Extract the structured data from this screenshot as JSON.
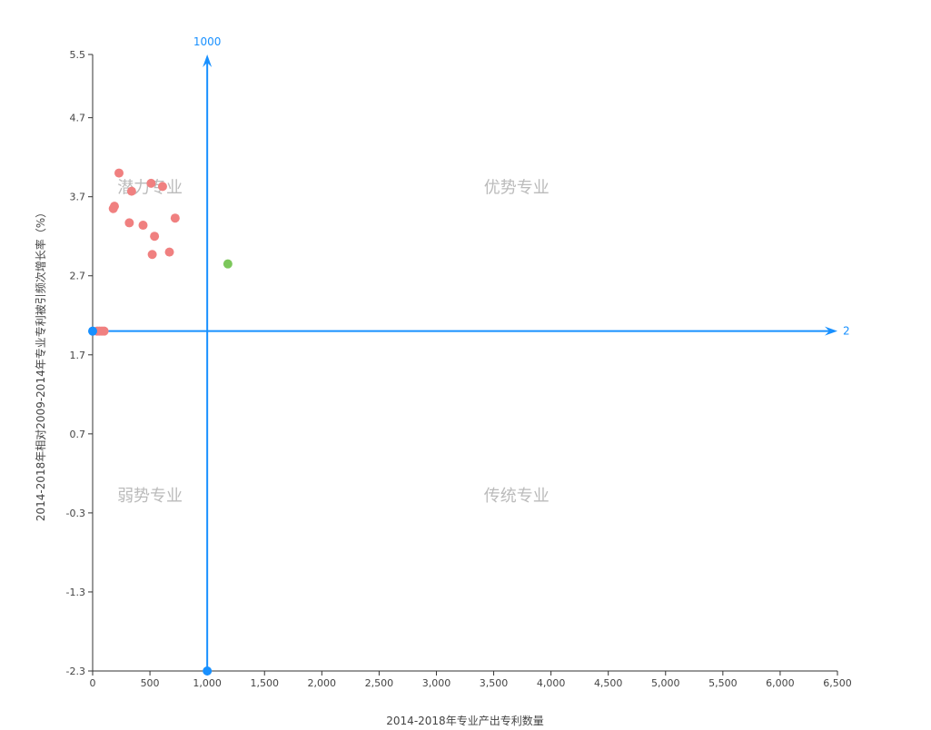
{
  "chart_data": {
    "type": "scatter",
    "title": "",
    "xlabel": "2014-2018年专业产出专利数量",
    "ylabel": "2014-2018年相对2009-2014年专业专利被引频次增长率（%）",
    "xlim": [
      0,
      6500
    ],
    "ylim": [
      -2.3,
      5.5
    ],
    "x_ticks": [
      0,
      500,
      1000,
      1500,
      2000,
      2500,
      3000,
      3500,
      4000,
      4500,
      5000,
      5500,
      6000,
      6500
    ],
    "x_tick_labels": [
      "0",
      "500",
      "1,000",
      "1,500",
      "2,000",
      "2,500",
      "3,000",
      "3,500",
      "4,000",
      "4,500",
      "5,000",
      "5,500",
      "6,000",
      "6,500"
    ],
    "y_ticks": [
      5.5,
      4.7,
      3.7,
      2.7,
      1.7,
      0.7,
      -0.3,
      -1.3,
      -2.3
    ],
    "y_tick_labels": [
      "5.5",
      "4.7",
      "3.7",
      "2.7",
      "1.7",
      "0.7",
      "-0.3",
      "-1.3",
      "-2.3"
    ],
    "reference_lines": {
      "vertical": {
        "x": 1000,
        "label": "1000",
        "color": "#1890ff"
      },
      "horizontal": {
        "y": 2,
        "label": "2",
        "color": "#1890ff"
      }
    },
    "quadrant_labels": {
      "top_left": "潜力专业",
      "top_right": "优势专业",
      "bottom_left": "弱势专业",
      "bottom_right": "传统专业"
    },
    "quadrant_label_positions": {
      "top_left": [
        500,
        3.75
      ],
      "top_right": [
        3700,
        3.75
      ],
      "bottom_left": [
        500,
        -0.15
      ],
      "bottom_right": [
        3700,
        -0.15
      ]
    },
    "series": [
      {
        "color": "#f08080",
        "points": [
          {
            "x": 230,
            "y": 4.0
          },
          {
            "x": 510,
            "y": 3.87
          },
          {
            "x": 610,
            "y": 3.83
          },
          {
            "x": 340,
            "y": 3.77
          },
          {
            "x": 190,
            "y": 3.58
          },
          {
            "x": 180,
            "y": 3.55
          },
          {
            "x": 320,
            "y": 3.37
          },
          {
            "x": 440,
            "y": 3.34
          },
          {
            "x": 720,
            "y": 3.43
          },
          {
            "x": 540,
            "y": 3.2
          },
          {
            "x": 670,
            "y": 3.0
          },
          {
            "x": 520,
            "y": 2.97
          },
          {
            "x": 40,
            "y": 2.0
          },
          {
            "x": 60,
            "y": 2.0
          },
          {
            "x": 80,
            "y": 2.0
          },
          {
            "x": 100,
            "y": 2.0
          }
        ]
      },
      {
        "color": "#7cc75b",
        "points": [
          {
            "x": 1180,
            "y": 2.85
          }
        ]
      },
      {
        "color": "#1890ff",
        "points": [
          {
            "x": 0,
            "y": 2.0
          },
          {
            "x": 1000,
            "y": -2.3
          }
        ]
      }
    ]
  }
}
